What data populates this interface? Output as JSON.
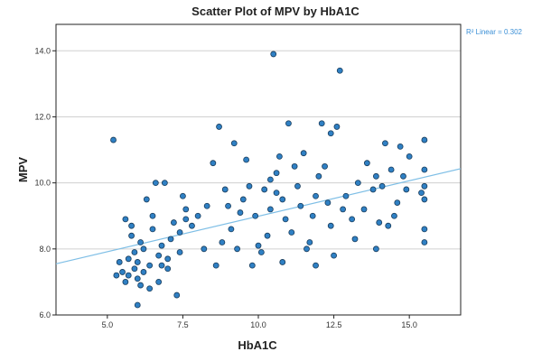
{
  "chart_data": {
    "type": "scatter",
    "title": "Scatter Plot of MPV by HbA1C",
    "xlabel": "HbA1C",
    "ylabel": "MPV",
    "xlim": [
      3.3,
      16.7
    ],
    "ylim": [
      6.0,
      14.8
    ],
    "x_ticks": [
      5.0,
      7.5,
      10.0,
      12.5,
      15.0
    ],
    "x_tick_labels": [
      "5.0",
      "7.5",
      "10.0",
      "12.5",
      "15.0"
    ],
    "y_ticks": [
      6.0,
      8.0,
      10.0,
      12.0,
      14.0
    ],
    "y_tick_labels": [
      "6.0",
      "8.0",
      "10.0",
      "12.0",
      "14.0"
    ],
    "grid": "horizontal",
    "fit_line": {
      "type": "linear",
      "label": "R² Linear = 0.302",
      "x": [
        3.3,
        16.7
      ],
      "y": [
        7.55,
        10.43
      ]
    },
    "colors": {
      "marker_fill": "#2f80c4",
      "marker_edge": "#1a3d5c",
      "fit_line": "#7fbfe6",
      "grid": "#d0d0d0",
      "r2_text": "#3a8fd6"
    },
    "points": [
      {
        "x": 5.2,
        "y": 11.3
      },
      {
        "x": 5.4,
        "y": 7.6
      },
      {
        "x": 5.5,
        "y": 7.3
      },
      {
        "x": 5.6,
        "y": 7.0
      },
      {
        "x": 5.7,
        "y": 7.7
      },
      {
        "x": 5.8,
        "y": 8.4
      },
      {
        "x": 5.3,
        "y": 7.2
      },
      {
        "x": 5.9,
        "y": 7.4
      },
      {
        "x": 6.0,
        "y": 7.6
      },
      {
        "x": 6.0,
        "y": 7.1
      },
      {
        "x": 5.6,
        "y": 8.9
      },
      {
        "x": 5.8,
        "y": 8.7
      },
      {
        "x": 6.1,
        "y": 8.2
      },
      {
        "x": 6.2,
        "y": 7.3
      },
      {
        "x": 6.3,
        "y": 9.5
      },
      {
        "x": 6.5,
        "y": 9.0
      },
      {
        "x": 6.6,
        "y": 10.0
      },
      {
        "x": 6.9,
        "y": 10.0
      },
      {
        "x": 6.0,
        "y": 6.3
      },
      {
        "x": 6.4,
        "y": 6.8
      },
      {
        "x": 6.7,
        "y": 7.8
      },
      {
        "x": 6.8,
        "y": 7.5
      },
      {
        "x": 7.0,
        "y": 7.7
      },
      {
        "x": 7.2,
        "y": 8.8
      },
      {
        "x": 7.4,
        "y": 8.5
      },
      {
        "x": 7.5,
        "y": 9.6
      },
      {
        "x": 7.6,
        "y": 9.2
      },
      {
        "x": 7.8,
        "y": 8.7
      },
      {
        "x": 8.2,
        "y": 8.0
      },
      {
        "x": 8.5,
        "y": 10.6
      },
      {
        "x": 8.7,
        "y": 11.7
      },
      {
        "x": 9.0,
        "y": 9.3
      },
      {
        "x": 9.2,
        "y": 11.2
      },
      {
        "x": 9.4,
        "y": 9.1
      },
      {
        "x": 9.6,
        "y": 10.7
      },
      {
        "x": 9.8,
        "y": 7.5
      },
      {
        "x": 10.0,
        "y": 8.1
      },
      {
        "x": 10.2,
        "y": 9.8
      },
      {
        "x": 10.4,
        "y": 9.2
      },
      {
        "x": 10.5,
        "y": 13.9
      },
      {
        "x": 10.6,
        "y": 10.3
      },
      {
        "x": 10.7,
        "y": 10.8
      },
      {
        "x": 10.8,
        "y": 9.5
      },
      {
        "x": 11.0,
        "y": 11.8
      },
      {
        "x": 11.1,
        "y": 8.5
      },
      {
        "x": 11.3,
        "y": 9.9
      },
      {
        "x": 11.5,
        "y": 10.9
      },
      {
        "x": 11.7,
        "y": 8.2
      },
      {
        "x": 11.9,
        "y": 7.5
      },
      {
        "x": 12.1,
        "y": 11.8
      },
      {
        "x": 12.2,
        "y": 10.5
      },
      {
        "x": 12.4,
        "y": 8.7
      },
      {
        "x": 12.6,
        "y": 11.7
      },
      {
        "x": 12.7,
        "y": 13.4
      },
      {
        "x": 12.9,
        "y": 9.6
      },
      {
        "x": 13.1,
        "y": 8.9
      },
      {
        "x": 13.6,
        "y": 10.6
      },
      {
        "x": 13.8,
        "y": 9.8
      },
      {
        "x": 14.0,
        "y": 8.8
      },
      {
        "x": 14.2,
        "y": 11.2
      },
      {
        "x": 14.4,
        "y": 10.4
      },
      {
        "x": 14.5,
        "y": 9.0
      },
      {
        "x": 14.7,
        "y": 11.1
      },
      {
        "x": 14.9,
        "y": 9.8
      },
      {
        "x": 15.0,
        "y": 10.8
      },
      {
        "x": 15.5,
        "y": 11.3
      },
      {
        "x": 15.5,
        "y": 8.2
      },
      {
        "x": 15.5,
        "y": 8.6
      },
      {
        "x": 15.5,
        "y": 9.5
      },
      {
        "x": 15.5,
        "y": 9.9
      },
      {
        "x": 15.5,
        "y": 10.4
      },
      {
        "x": 15.4,
        "y": 9.7
      },
      {
        "x": 7.3,
        "y": 6.6
      },
      {
        "x": 7.6,
        "y": 8.9
      },
      {
        "x": 8.0,
        "y": 9.0
      },
      {
        "x": 8.3,
        "y": 9.3
      },
      {
        "x": 8.8,
        "y": 8.2
      },
      {
        "x": 9.1,
        "y": 8.6
      },
      {
        "x": 9.5,
        "y": 9.5
      },
      {
        "x": 9.9,
        "y": 9.0
      },
      {
        "x": 10.3,
        "y": 8.4
      },
      {
        "x": 10.9,
        "y": 8.9
      },
      {
        "x": 11.4,
        "y": 9.3
      },
      {
        "x": 11.8,
        "y": 9.0
      },
      {
        "x": 12.3,
        "y": 9.4
      },
      {
        "x": 12.8,
        "y": 9.2
      },
      {
        "x": 13.3,
        "y": 10.0
      },
      {
        "x": 13.9,
        "y": 10.2
      },
      {
        "x": 14.1,
        "y": 9.9
      },
      {
        "x": 14.6,
        "y": 9.4
      },
      {
        "x": 5.9,
        "y": 7.9
      },
      {
        "x": 6.2,
        "y": 8.0
      },
      {
        "x": 6.5,
        "y": 8.6
      },
      {
        "x": 6.8,
        "y": 8.1
      },
      {
        "x": 7.1,
        "y": 8.3
      },
      {
        "x": 7.4,
        "y": 7.9
      },
      {
        "x": 5.7,
        "y": 7.2
      },
      {
        "x": 6.1,
        "y": 6.9
      },
      {
        "x": 6.4,
        "y": 7.5
      },
      {
        "x": 6.7,
        "y": 7.0
      },
      {
        "x": 7.0,
        "y": 7.4
      },
      {
        "x": 8.6,
        "y": 7.5
      },
      {
        "x": 9.3,
        "y": 8.0
      },
      {
        "x": 10.1,
        "y": 7.9
      },
      {
        "x": 10.8,
        "y": 7.6
      },
      {
        "x": 11.6,
        "y": 8.0
      },
      {
        "x": 12.5,
        "y": 7.8
      },
      {
        "x": 13.2,
        "y": 8.3
      },
      {
        "x": 13.9,
        "y": 8.0
      },
      {
        "x": 14.3,
        "y": 8.7
      },
      {
        "x": 12.0,
        "y": 10.2
      },
      {
        "x": 11.2,
        "y": 10.5
      },
      {
        "x": 10.6,
        "y": 9.7
      },
      {
        "x": 9.7,
        "y": 9.9
      },
      {
        "x": 8.9,
        "y": 9.8
      },
      {
        "x": 12.4,
        "y": 11.5
      },
      {
        "x": 13.5,
        "y": 9.2
      },
      {
        "x": 14.8,
        "y": 10.2
      },
      {
        "x": 11.9,
        "y": 9.6
      },
      {
        "x": 10.4,
        "y": 10.1
      }
    ]
  }
}
